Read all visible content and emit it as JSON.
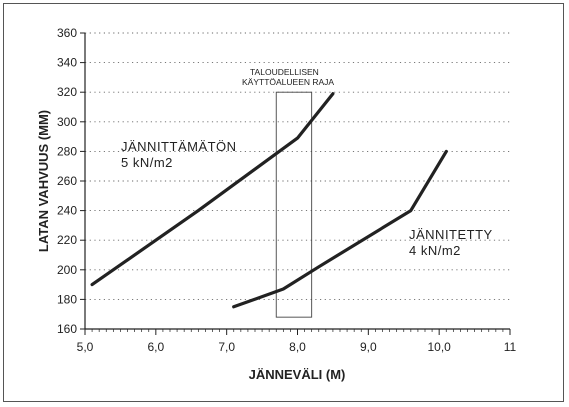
{
  "chart_data": {
    "type": "line",
    "xlabel": "JÄNNEVÄLI (M)",
    "ylabel": "LATAN VAHVUUS (MM)",
    "xlim": [
      5.0,
      11.0
    ],
    "ylim": [
      160,
      360
    ],
    "xticks": [
      "5,0",
      "6,0",
      "7,0",
      "8,0",
      "9,0",
      "10,0",
      "11"
    ],
    "yticks": [
      "160",
      "180",
      "200",
      "220",
      "240",
      "260",
      "280",
      "300",
      "320",
      "340",
      "360"
    ],
    "grid": "horizontal-dotted",
    "series": [
      {
        "name": "JÄNNITTÄMÄTÖN",
        "load": "5 kN/m2",
        "points": [
          [
            5.1,
            190
          ],
          [
            6.6,
            240
          ],
          [
            8.0,
            289
          ],
          [
            8.5,
            319
          ]
        ]
      },
      {
        "name": "JÄNNITETTY",
        "load": "4 kN/m2",
        "points": [
          [
            7.1,
            175
          ],
          [
            7.8,
            187
          ],
          [
            8.3,
            202
          ],
          [
            9.6,
            240
          ],
          [
            10.1,
            280
          ]
        ]
      }
    ],
    "region": {
      "label_line1": "TALOUDELLISEN",
      "label_line2": "KÄYTTÖALUEEN RAJA",
      "x_range": [
        7.7,
        8.2
      ],
      "y_range": [
        168,
        320
      ]
    }
  }
}
